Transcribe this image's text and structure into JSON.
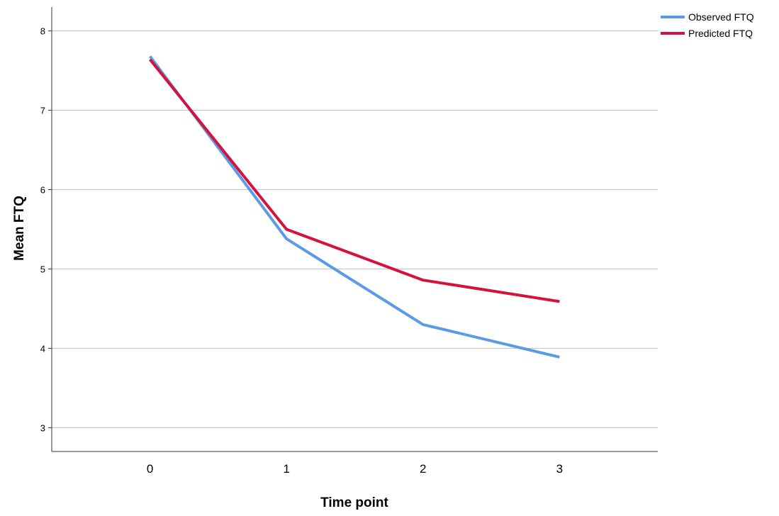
{
  "chart_data": {
    "type": "line",
    "title": "",
    "xlabel": "Time point",
    "ylabel": "Mean FTQ",
    "categories": [
      "0",
      "1",
      "2",
      "3"
    ],
    "x": [
      0,
      1,
      2,
      3
    ],
    "y_ticks": [
      "3",
      "4",
      "5",
      "6",
      "7",
      "8"
    ],
    "ylim": [
      2.7,
      8.3
    ],
    "xlim": [
      -0.72,
      3.72
    ],
    "grid": "horizontal",
    "legend_position": "top-right",
    "series": [
      {
        "name": "Observed FTQ",
        "color": "#5b9be6",
        "values": [
          7.68,
          5.38,
          4.3,
          3.89
        ]
      },
      {
        "name": "Predicted FTQ",
        "color": "#d5123b",
        "values": [
          7.64,
          5.5,
          4.86,
          4.59
        ]
      }
    ]
  }
}
